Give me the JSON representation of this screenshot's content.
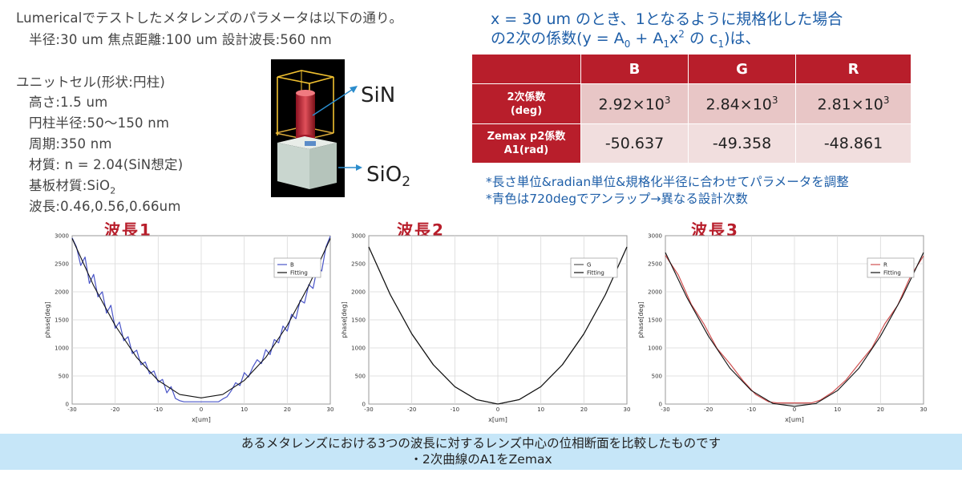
{
  "spec": {
    "line1": "Lumericalでテストしたメタレンズのパラメータは以下の通り。",
    "line2": "半径:30 um 焦点距離:100 um 設計波長:560 nm",
    "unit_title": "ユニットセル(形状:円柱)",
    "height": "高さ:1.5 um",
    "radius": "円柱半径:50〜150 nm",
    "period": "周期:350 nm",
    "material": "材質: n = 2.04(SiN想定)",
    "substrate_prefix": "基板材質:SiO",
    "substrate_sub": "2",
    "wavelength": "波長:0.46,0.56,0.66um"
  },
  "cell_labels": {
    "sin": "SiN",
    "sio_prefix": "SiO",
    "sio_sub": "2"
  },
  "fit_title": {
    "line1": "x = 30 um のとき、1となるように規格化した場合",
    "line2_a": "の2次の係数(y = A",
    "sub0": "0",
    "line2_b": " + A",
    "sub1a": "1",
    "line2_c": "x",
    "sup2": "2",
    "line2_d": " の c",
    "sub1b": "1",
    "line2_e": ")は、"
  },
  "table": {
    "headers": [
      "B",
      "G",
      "R"
    ],
    "row1_label_a": "2次係数",
    "row1_label_b": "(deg)",
    "row1": [
      {
        "mant": "2.92×10",
        "exp": "3"
      },
      {
        "mant": "2.84×10",
        "exp": "3"
      },
      {
        "mant": "2.81×10",
        "exp": "3"
      }
    ],
    "row2_label_a": "Zemax p2係数",
    "row2_label_b": "A1(rad)",
    "row2": [
      "-50.637",
      "-49.358",
      "-48.861"
    ]
  },
  "notes": {
    "n1": "*長さ単位&radian単位&規格化半径に合わせてパラメータを調整",
    "n2": "*青色は720degでアンラップ→異なる設計次数"
  },
  "wave_titles": [
    "波長1",
    "波長2",
    "波長3"
  ],
  "footer": {
    "line1": "あるメタレンズにおける3つの波長に対するレンズ中心の位相断面を比較したものです",
    "line2": "・2次曲線のA1をZemax"
  },
  "colors": {
    "B": "#4a55c8",
    "G": "#555555",
    "R": "#d05050",
    "fit": "#111111",
    "accent": "#b81e2b",
    "blue_text": "#1f5fa8"
  },
  "chart_data": [
    {
      "type": "line",
      "xlabel": "x[um]",
      "ylabel": "phase[deg]",
      "xlim": [
        -30,
        30
      ],
      "ylim": [
        0,
        3000
      ],
      "xticks": [
        -30,
        -20,
        -10,
        0,
        10,
        20,
        30
      ],
      "yticks": [
        0,
        500,
        1000,
        1500,
        2000,
        2500,
        3000
      ],
      "legend": "top-right",
      "series": [
        {
          "name": "B",
          "x": [
            -30,
            -29,
            -28,
            -27,
            -26,
            -25,
            -24,
            -23,
            -22,
            -21,
            -20,
            -19,
            -18,
            -17,
            -16,
            -15,
            -14,
            -13,
            -12,
            -11,
            -10,
            -9,
            -8,
            -7,
            -6,
            -5,
            -4,
            -3,
            -2,
            -1,
            0,
            1,
            2,
            3,
            4,
            5,
            6,
            7,
            8,
            9,
            10,
            11,
            12,
            13,
            14,
            15,
            16,
            17,
            18,
            19,
            20,
            21,
            22,
            23,
            24,
            25,
            26,
            27,
            28,
            29,
            30
          ],
          "y": [
            2960,
            2800,
            2470,
            2620,
            2150,
            2310,
            1910,
            2000,
            1620,
            1760,
            1350,
            1460,
            1130,
            1200,
            900,
            960,
            700,
            750,
            540,
            590,
            390,
            440,
            200,
            310,
            100,
            60,
            40,
            40,
            40,
            40,
            40,
            40,
            40,
            40,
            40,
            90,
            130,
            240,
            380,
            330,
            560,
            480,
            660,
            790,
            720,
            970,
            880,
            1150,
            1090,
            1390,
            1300,
            1600,
            1520,
            1850,
            1800,
            2130,
            2060,
            2440,
            2370,
            2800,
            2990
          ]
        },
        {
          "name": "Fitting",
          "x": [
            -30,
            -25,
            -20,
            -15,
            -10,
            -5,
            0,
            5,
            10,
            15,
            20,
            25,
            30
          ],
          "y": [
            2950,
            2110,
            1400,
            830,
            420,
            170,
            110,
            170,
            420,
            830,
            1400,
            2110,
            2950
          ]
        }
      ]
    },
    {
      "type": "line",
      "xlabel": "x[um]",
      "ylabel": "phase[deg]",
      "xlim": [
        -30,
        30
      ],
      "ylim": [
        0,
        3000
      ],
      "xticks": [
        -30,
        -20,
        -10,
        0,
        10,
        20,
        30
      ],
      "yticks": [
        0,
        500,
        1000,
        1500,
        2000,
        2500,
        3000
      ],
      "legend": "top-right",
      "series": [
        {
          "name": "G",
          "x": [
            -30,
            -25,
            -20,
            -15,
            -10,
            -5,
            0,
            5,
            10,
            15,
            20,
            25,
            30
          ],
          "y": [
            2800,
            1950,
            1250,
            700,
            310,
            80,
            0,
            80,
            310,
            700,
            1250,
            1950,
            2800
          ]
        },
        {
          "name": "Fitting",
          "x": [
            -30,
            -25,
            -20,
            -15,
            -10,
            -5,
            0,
            5,
            10,
            15,
            20,
            25,
            30
          ],
          "y": [
            2800,
            1950,
            1250,
            700,
            310,
            80,
            0,
            80,
            310,
            700,
            1250,
            1950,
            2800
          ]
        }
      ]
    },
    {
      "type": "line",
      "xlabel": "x[um]",
      "ylabel": "phase[deg]",
      "xlim": [
        -30,
        30
      ],
      "ylim": [
        0,
        3000
      ],
      "xticks": [
        -30,
        -20,
        -10,
        0,
        10,
        20,
        30
      ],
      "yticks": [
        0,
        500,
        1000,
        1500,
        2000,
        2500,
        3000
      ],
      "legend": "top-right",
      "series": [
        {
          "name": "R",
          "x": [
            -30,
            -27,
            -24,
            -21,
            -18,
            -15,
            -12,
            -9,
            -6,
            -4,
            -2,
            0,
            2,
            4,
            6,
            9,
            12,
            15,
            18,
            21,
            24,
            27,
            30
          ],
          "y": [
            2650,
            2300,
            1780,
            1420,
            990,
            720,
            420,
            170,
            40,
            20,
            20,
            20,
            20,
            20,
            70,
            220,
            430,
            720,
            1000,
            1430,
            1760,
            2280,
            2640
          ]
        },
        {
          "name": "Fitting",
          "x": [
            -30,
            -25,
            -20,
            -15,
            -10,
            -5,
            0,
            5,
            10,
            15,
            20,
            25,
            30
          ],
          "y": [
            2700,
            1900,
            1210,
            640,
            240,
            10,
            -40,
            10,
            240,
            640,
            1210,
            1900,
            2700
          ]
        }
      ]
    }
  ]
}
